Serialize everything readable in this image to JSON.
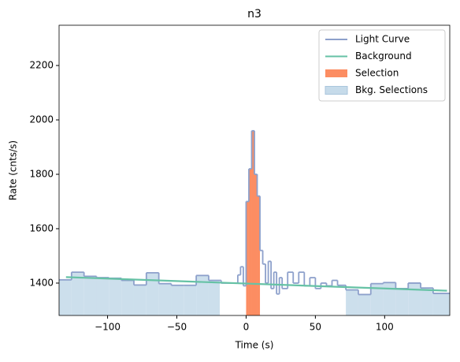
{
  "chart_data": {
    "type": "lightcurve",
    "title": "n3",
    "x_label": "Time (s)",
    "y_label": "Rate (cnts/s)",
    "xlim": [
      -135,
      147
    ],
    "ylim": [
      1281,
      2348
    ],
    "xticks": [
      {
        "value": -100,
        "label": "−100"
      },
      {
        "value": -50,
        "label": "−50"
      },
      0,
      50,
      100
    ],
    "yticks": [
      1400,
      1600,
      1800,
      2000,
      2200
    ],
    "legend": "upper right",
    "light_curve": {
      "name": "Light Curve",
      "color": "#8da0cb",
      "bins": [
        -135,
        -126,
        -117,
        -108,
        -99,
        -90,
        -81,
        -72,
        -63,
        -54,
        -45,
        -36,
        -27,
        -18,
        -6,
        -4,
        -2,
        0,
        2,
        4,
        6,
        8,
        10,
        12,
        14,
        16,
        18,
        20,
        22,
        24,
        26,
        30,
        34,
        38,
        42,
        46,
        50,
        54,
        58,
        62,
        66,
        72,
        81,
        90,
        99,
        108,
        117,
        126,
        135,
        147
      ],
      "values": [
        1412,
        1440,
        1425,
        1420,
        1418,
        1410,
        1393,
        1438,
        1398,
        1392,
        1392,
        1428,
        1410,
        1400,
        1430,
        1460,
        1390,
        1700,
        1820,
        1960,
        1800,
        1720,
        1520,
        1470,
        1400,
        1480,
        1380,
        1440,
        1360,
        1420,
        1380,
        1440,
        1400,
        1440,
        1390,
        1420,
        1380,
        1400,
        1390,
        1410,
        1392,
        1375,
        1358,
        1398,
        1402,
        1380,
        1400,
        1382,
        1362
      ]
    },
    "background": {
      "name": "Background",
      "color": "#66c2a5",
      "x": [
        -130,
        145
      ],
      "values": [
        1422,
        1372
      ]
    },
    "selection": {
      "name": "Selection",
      "color": "#fc8d62",
      "range": [
        0,
        10
      ]
    },
    "bkg_selections": {
      "name": "Bkg. Selections",
      "color": "#c6dbea",
      "ranges": [
        [
          -135,
          -19
        ],
        [
          72,
          147
        ]
      ]
    }
  }
}
